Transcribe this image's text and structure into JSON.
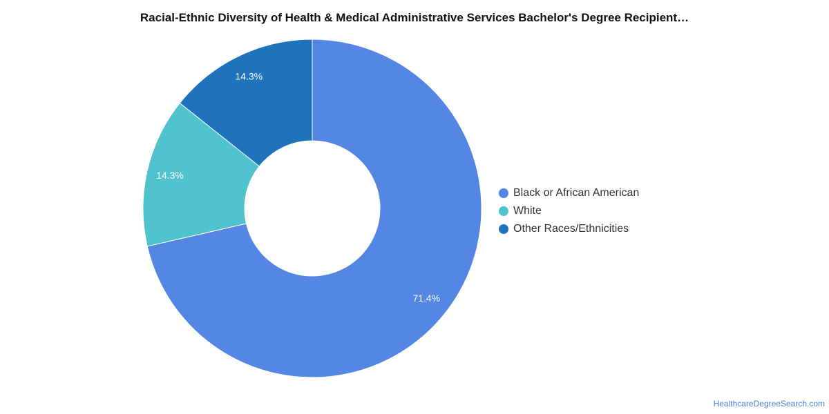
{
  "chart_data": {
    "type": "pie",
    "title": "Racial-Ethnic Diversity of Health & Medical Administrative Services Bachelor's Degree Recipient…",
    "categories": [
      "Black or African American",
      "White",
      "Other Races/Ethnicities"
    ],
    "values": [
      71.4,
      14.3,
      14.3
    ],
    "labels": [
      "71.4%",
      "14.3%",
      "14.3%"
    ],
    "colors": [
      "#5486e3",
      "#50c2cd",
      "#1e73bb"
    ],
    "donut": true,
    "legend_position": "right"
  },
  "source": "HealthcareDegreeSearch.com"
}
